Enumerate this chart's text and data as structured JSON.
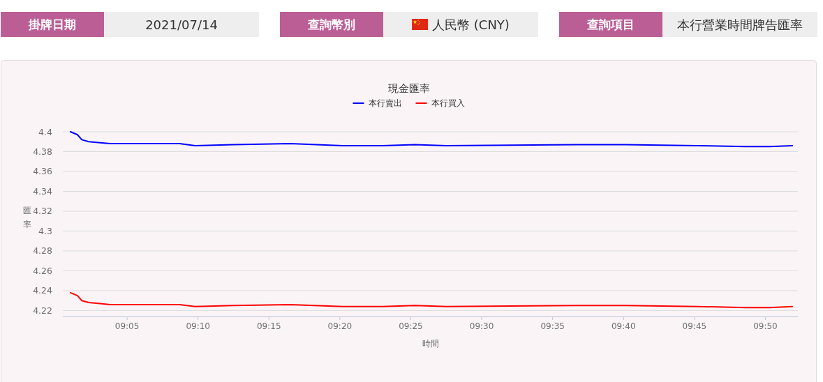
{
  "chart_data": {
    "type": "line",
    "title": "現金匯率",
    "xlabel": "時間",
    "ylabel": "匯率",
    "annotations": [
      "掛牌日期",
      "2021/07/14",
      "查詢幣別",
      "人民幣 (CNY)",
      "查詢項目",
      "本行營業時間牌告匯率"
    ],
    "x": [
      9.0167,
      9.025,
      9.03,
      9.0383,
      9.0517,
      9.0633,
      9.145,
      9.1633,
      9.2083,
      9.275,
      9.3367,
      9.3833,
      9.4217,
      9.4583,
      9.6117,
      9.6683,
      9.7533,
      9.81,
      9.8383,
      9.865
    ],
    "series": [
      {
        "name": "本行賣出",
        "color": "#0000ff",
        "values": [
          4.4,
          4.397,
          4.392,
          4.39,
          4.389,
          4.388,
          4.388,
          4.386,
          4.387,
          4.388,
          4.386,
          4.386,
          4.387,
          4.386,
          4.387,
          4.387,
          4.386,
          4.385,
          4.385,
          4.386
        ]
      },
      {
        "name": "本行買入",
        "color": "#ff0000",
        "values": [
          4.238,
          4.235,
          4.23,
          4.228,
          4.227,
          4.226,
          4.226,
          4.224,
          4.225,
          4.226,
          4.224,
          4.224,
          4.225,
          4.224,
          4.225,
          4.225,
          4.224,
          4.223,
          4.223,
          4.224
        ]
      }
    ],
    "xlim": [
      9.0078,
      9.8715
    ],
    "xticks": [
      {
        "value": 9.083333,
        "label": "09:05"
      },
      {
        "value": 9.166667,
        "label": "09:10"
      },
      {
        "value": 9.25,
        "label": "09:15"
      },
      {
        "value": 9.333333,
        "label": "09:20"
      },
      {
        "value": 9.416667,
        "label": "09:25"
      },
      {
        "value": 9.5,
        "label": "09:30"
      },
      {
        "value": 9.583333,
        "label": "09:35"
      },
      {
        "value": 9.666667,
        "label": "09:40"
      },
      {
        "value": 9.75,
        "label": "09:45"
      },
      {
        "value": 9.833333,
        "label": "09:50"
      }
    ],
    "ylim": [
      4.214,
      4.4
    ],
    "yticks": [
      4.22,
      4.24,
      4.26,
      4.28,
      4.3,
      4.32,
      4.34,
      4.36,
      4.38,
      4.4
    ],
    "grid": "y",
    "legend": "top",
    "line_style": "solid"
  }
}
